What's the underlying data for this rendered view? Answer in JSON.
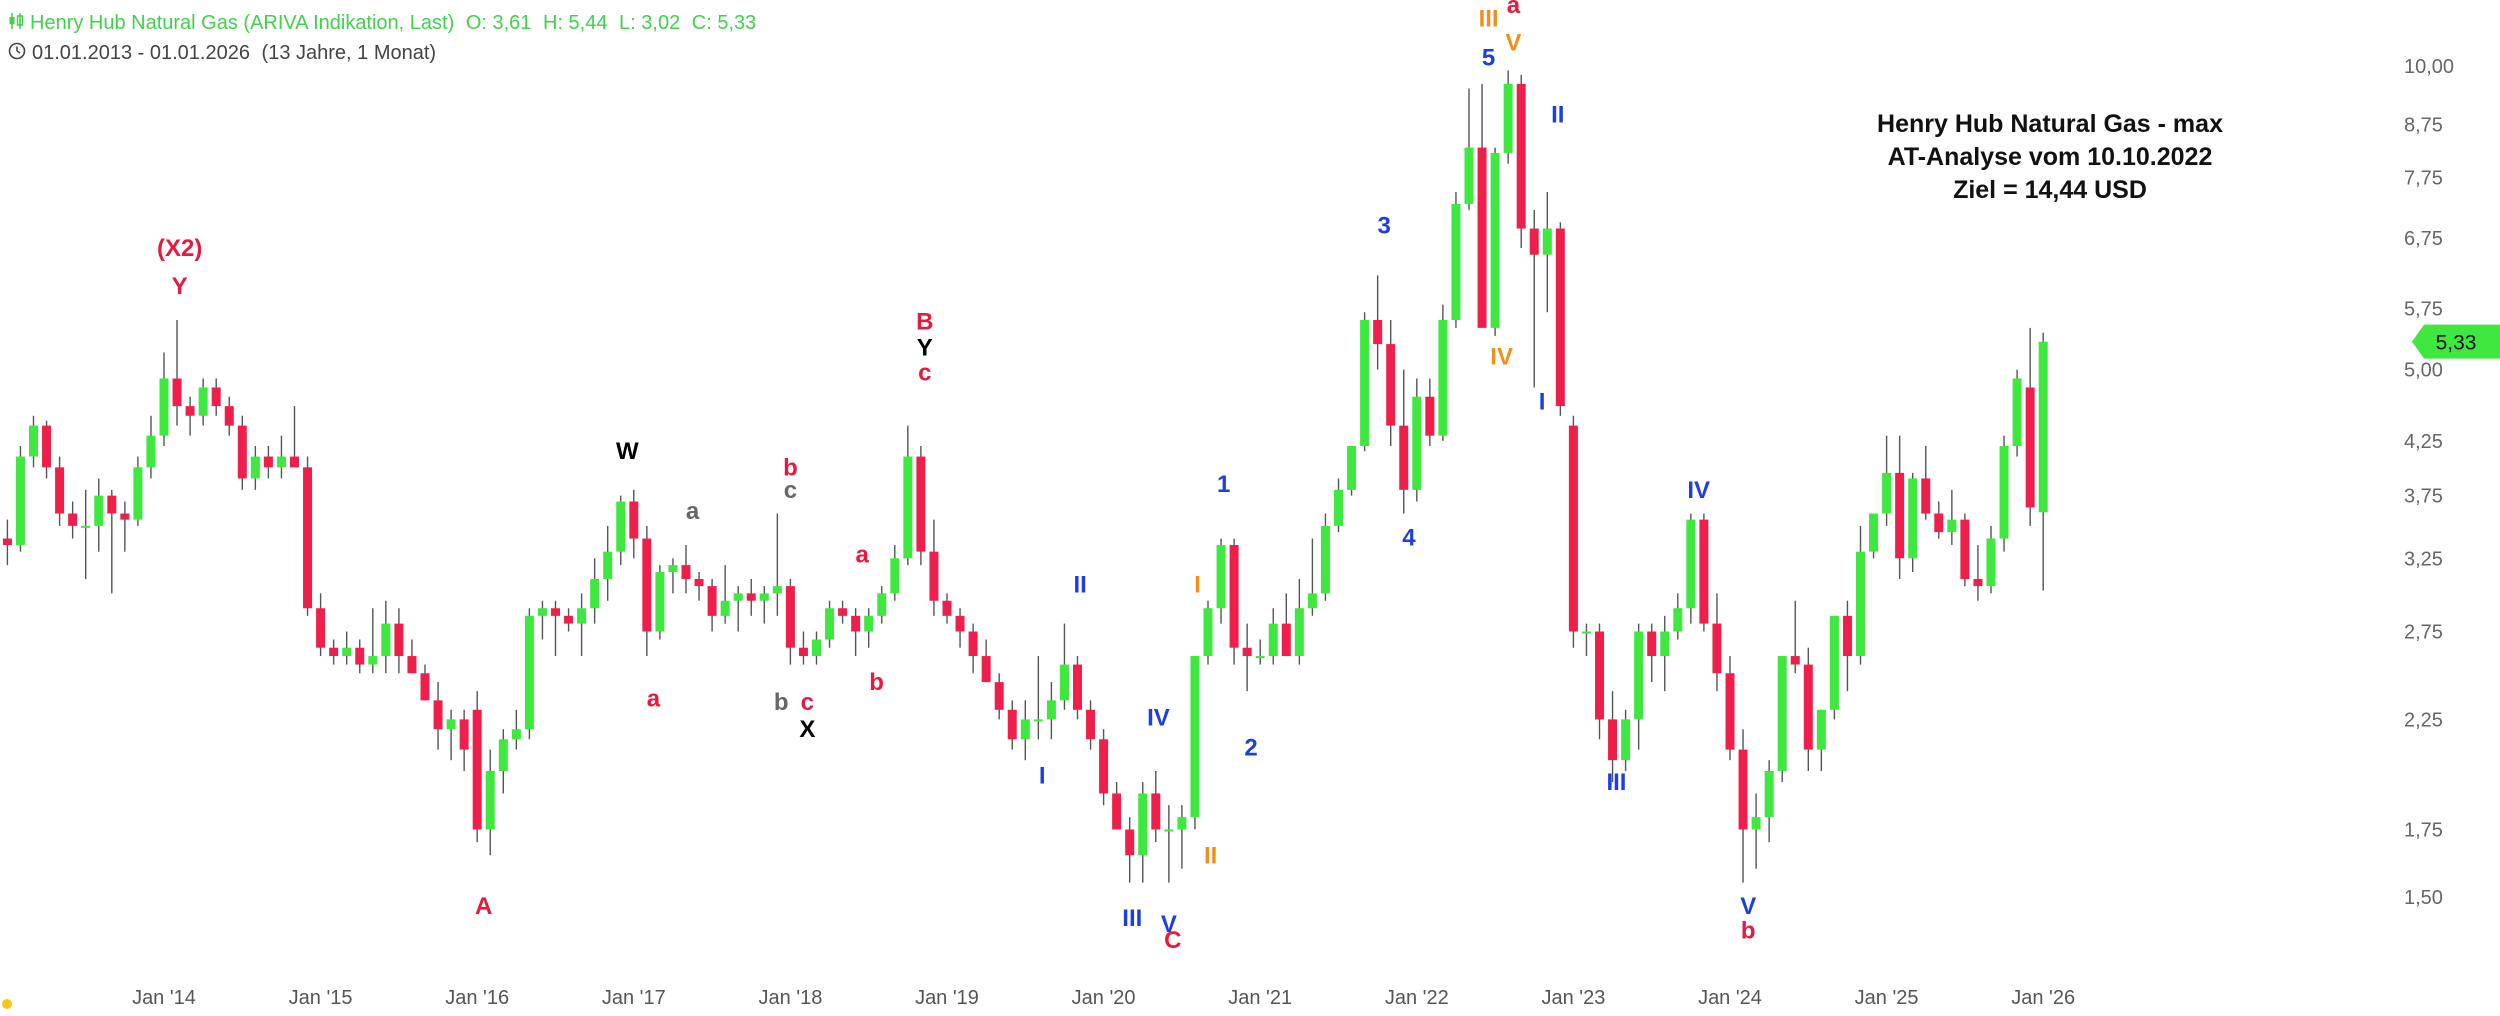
{
  "header": {
    "instrument": "Henry Hub Natural Gas (ARIVA Indikation, Last)",
    "open": "O: 3,61",
    "high": "H: 5,44",
    "low": "L: 3,02",
    "close": "C: 5,33",
    "range": "01.01.2013 - 01.01.2026",
    "duration": "(13 Jahre, 1 Monat)"
  },
  "annotation": {
    "line1": "Henry Hub Natural Gas - max",
    "line2": "AT-Analyse vom 10.10.2022",
    "line3": "Ziel = 14,44 USD"
  },
  "colors": {
    "up": "#3ee83f",
    "down": "#ee1f4a",
    "wick": "#555555",
    "header": "#3fd24a",
    "red": "#e8193c",
    "blue": "#1d3ee0",
    "orange": "#f0901c",
    "gray": "#666666",
    "black": "#000000"
  },
  "chart_data": {
    "type": "candlestick",
    "scale": "log",
    "ylim": [
      1.38,
      11.2
    ],
    "y_ticks": [
      "1,50",
      "1,75",
      "2,25",
      "2,75",
      "3,25",
      "3,75",
      "4,25",
      "5,00",
      "5,75",
      "6,75",
      "7,75",
      "8,75",
      "10,00"
    ],
    "y_tick_values": [
      1.5,
      1.75,
      2.25,
      2.75,
      3.25,
      3.75,
      4.25,
      5.0,
      5.75,
      6.75,
      7.75,
      8.75,
      10.0
    ],
    "x_ticks": [
      "Jan '14",
      "Jan '15",
      "Jan '16",
      "Jan '17",
      "Jan '18",
      "Jan '19",
      "Jan '20",
      "Jan '21",
      "Jan '22",
      "Jan '23",
      "Jan '24",
      "Jan '25",
      "Jan '26"
    ],
    "x_tick_months": [
      12,
      24,
      36,
      48,
      60,
      72,
      84,
      96,
      108,
      120,
      132,
      144,
      156
    ],
    "last_price": "5,33",
    "last_value": 5.33,
    "bars": [
      [
        0,
        3.4,
        3.55,
        3.2,
        3.35
      ],
      [
        1,
        3.35,
        4.2,
        3.3,
        4.1
      ],
      [
        2,
        4.1,
        4.5,
        4.0,
        4.4
      ],
      [
        3,
        4.4,
        4.45,
        3.9,
        4.0
      ],
      [
        4,
        4.0,
        4.1,
        3.5,
        3.6
      ],
      [
        5,
        3.6,
        3.7,
        3.4,
        3.5
      ],
      [
        6,
        3.5,
        3.8,
        3.1,
        3.5
      ],
      [
        7,
        3.5,
        3.9,
        3.3,
        3.75
      ],
      [
        8,
        3.75,
        3.8,
        3.0,
        3.6
      ],
      [
        9,
        3.6,
        3.7,
        3.3,
        3.55
      ],
      [
        10,
        3.55,
        4.1,
        3.5,
        4.0
      ],
      [
        11,
        4.0,
        4.5,
        3.9,
        4.3
      ],
      [
        12,
        4.3,
        5.2,
        4.2,
        4.9
      ],
      [
        13,
        4.9,
        5.6,
        4.4,
        4.6
      ],
      [
        14,
        4.6,
        4.7,
        4.3,
        4.5
      ],
      [
        15,
        4.5,
        4.9,
        4.4,
        4.8
      ],
      [
        16,
        4.8,
        4.9,
        4.5,
        4.6
      ],
      [
        17,
        4.6,
        4.7,
        4.3,
        4.4
      ],
      [
        18,
        4.4,
        4.5,
        3.8,
        3.9
      ],
      [
        19,
        3.9,
        4.2,
        3.8,
        4.1
      ],
      [
        20,
        4.1,
        4.2,
        3.9,
        4.0
      ],
      [
        21,
        4.0,
        4.3,
        3.9,
        4.1
      ],
      [
        22,
        4.1,
        4.6,
        4.0,
        4.0
      ],
      [
        23,
        4.0,
        4.1,
        2.85,
        2.9
      ],
      [
        24,
        2.9,
        3.0,
        2.6,
        2.65
      ],
      [
        25,
        2.65,
        2.7,
        2.55,
        2.6
      ],
      [
        26,
        2.6,
        2.75,
        2.55,
        2.65
      ],
      [
        27,
        2.65,
        2.7,
        2.5,
        2.55
      ],
      [
        28,
        2.55,
        2.9,
        2.5,
        2.6
      ],
      [
        29,
        2.6,
        2.95,
        2.5,
        2.8
      ],
      [
        30,
        2.8,
        2.9,
        2.5,
        2.6
      ],
      [
        31,
        2.6,
        2.7,
        2.5,
        2.5
      ],
      [
        32,
        2.5,
        2.55,
        2.35,
        2.35
      ],
      [
        33,
        2.35,
        2.45,
        2.1,
        2.2
      ],
      [
        34,
        2.2,
        2.3,
        2.05,
        2.25
      ],
      [
        35,
        2.25,
        2.3,
        2.0,
        2.1
      ],
      [
        36,
        2.3,
        2.4,
        1.7,
        1.75
      ],
      [
        37,
        1.75,
        2.1,
        1.65,
        2.0
      ],
      [
        38,
        2.0,
        2.2,
        1.9,
        2.15
      ],
      [
        39,
        2.15,
        2.3,
        2.1,
        2.2
      ],
      [
        40,
        2.2,
        2.9,
        2.15,
        2.85
      ],
      [
        41,
        2.85,
        2.95,
        2.7,
        2.9
      ],
      [
        42,
        2.9,
        2.95,
        2.6,
        2.85
      ],
      [
        43,
        2.85,
        2.9,
        2.75,
        2.8
      ],
      [
        44,
        2.8,
        3.0,
        2.6,
        2.9
      ],
      [
        45,
        2.9,
        3.25,
        2.8,
        3.1
      ],
      [
        46,
        3.1,
        3.5,
        2.95,
        3.3
      ],
      [
        47,
        3.3,
        3.75,
        3.2,
        3.7
      ],
      [
        48,
        3.7,
        3.8,
        3.25,
        3.4
      ],
      [
        49,
        3.4,
        3.5,
        2.6,
        2.75
      ],
      [
        50,
        2.75,
        3.2,
        2.7,
        3.15
      ],
      [
        51,
        3.15,
        3.25,
        3.0,
        3.2
      ],
      [
        52,
        3.2,
        3.35,
        3.0,
        3.1
      ],
      [
        53,
        3.1,
        3.15,
        2.95,
        3.05
      ],
      [
        54,
        3.05,
        3.1,
        2.75,
        2.85
      ],
      [
        55,
        2.85,
        3.2,
        2.8,
        2.95
      ],
      [
        56,
        2.95,
        3.05,
        2.75,
        3.0
      ],
      [
        57,
        3.0,
        3.1,
        2.85,
        2.95
      ],
      [
        58,
        2.95,
        3.05,
        2.8,
        3.0
      ],
      [
        59,
        3.0,
        3.6,
        2.85,
        3.05
      ],
      [
        60,
        3.05,
        3.1,
        2.55,
        2.65
      ],
      [
        61,
        2.65,
        2.75,
        2.55,
        2.6
      ],
      [
        62,
        2.6,
        2.75,
        2.55,
        2.7
      ],
      [
        63,
        2.7,
        2.95,
        2.65,
        2.9
      ],
      [
        64,
        2.9,
        2.95,
        2.8,
        2.85
      ],
      [
        65,
        2.85,
        2.9,
        2.6,
        2.75
      ],
      [
        66,
        2.75,
        2.9,
        2.65,
        2.85
      ],
      [
        67,
        2.85,
        3.05,
        2.8,
        3.0
      ],
      [
        68,
        3.0,
        3.35,
        2.95,
        3.25
      ],
      [
        69,
        3.25,
        4.4,
        3.2,
        4.1
      ],
      [
        70,
        4.1,
        4.2,
        3.2,
        3.3
      ],
      [
        71,
        3.3,
        3.55,
        2.85,
        2.95
      ],
      [
        72,
        2.95,
        3.0,
        2.8,
        2.85
      ],
      [
        73,
        2.85,
        2.9,
        2.65,
        2.75
      ],
      [
        74,
        2.75,
        2.8,
        2.5,
        2.6
      ],
      [
        75,
        2.6,
        2.7,
        2.45,
        2.45
      ],
      [
        76,
        2.45,
        2.5,
        2.25,
        2.3
      ],
      [
        77,
        2.3,
        2.35,
        2.1,
        2.15
      ],
      [
        78,
        2.15,
        2.35,
        2.05,
        2.25
      ],
      [
        79,
        2.25,
        2.6,
        2.15,
        2.25
      ],
      [
        80,
        2.25,
        2.45,
        2.15,
        2.35
      ],
      [
        81,
        2.35,
        2.8,
        2.3,
        2.55
      ],
      [
        82,
        2.55,
        2.6,
        2.25,
        2.3
      ],
      [
        83,
        2.3,
        2.35,
        2.1,
        2.15
      ],
      [
        84,
        2.15,
        2.2,
        1.85,
        1.9
      ],
      [
        85,
        1.9,
        1.95,
        1.75,
        1.75
      ],
      [
        86,
        1.75,
        1.8,
        1.55,
        1.65
      ],
      [
        87,
        1.65,
        1.95,
        1.55,
        1.9
      ],
      [
        88,
        1.9,
        2.0,
        1.7,
        1.75
      ],
      [
        89,
        1.75,
        1.85,
        1.55,
        1.75
      ],
      [
        90,
        1.75,
        1.85,
        1.6,
        1.8
      ],
      [
        91,
        1.8,
        2.6,
        1.75,
        2.6
      ],
      [
        92,
        2.6,
        2.95,
        2.55,
        2.9
      ],
      [
        93,
        2.9,
        3.4,
        2.8,
        3.35
      ],
      [
        94,
        3.35,
        3.4,
        2.55,
        2.65
      ],
      [
        95,
        2.65,
        2.8,
        2.4,
        2.6
      ],
      [
        96,
        2.6,
        2.7,
        2.55,
        2.6
      ],
      [
        97,
        2.6,
        2.9,
        2.55,
        2.8
      ],
      [
        98,
        2.8,
        3.0,
        2.6,
        2.6
      ],
      [
        99,
        2.6,
        3.1,
        2.55,
        2.9
      ],
      [
        100,
        2.9,
        3.4,
        2.85,
        3.0
      ],
      [
        101,
        3.0,
        3.6,
        2.95,
        3.5
      ],
      [
        102,
        3.5,
        3.9,
        3.45,
        3.8
      ],
      [
        103,
        3.8,
        4.2,
        3.75,
        4.2
      ],
      [
        104,
        4.2,
        5.7,
        4.15,
        5.6
      ],
      [
        105,
        5.6,
        6.2,
        5.0,
        5.3
      ],
      [
        106,
        5.3,
        5.6,
        4.2,
        4.4
      ],
      [
        107,
        4.4,
        5.0,
        3.6,
        3.8
      ],
      [
        108,
        3.8,
        4.9,
        3.7,
        4.7
      ],
      [
        109,
        4.7,
        4.9,
        4.2,
        4.3
      ],
      [
        110,
        4.3,
        5.8,
        4.25,
        5.6
      ],
      [
        111,
        5.6,
        7.5,
        5.5,
        7.3
      ],
      [
        112,
        7.3,
        9.5,
        7.2,
        8.3
      ],
      [
        113,
        8.3,
        9.6,
        5.6,
        5.5
      ],
      [
        114,
        5.5,
        8.3,
        5.4,
        8.2
      ],
      [
        115,
        8.2,
        9.9,
        8.0,
        9.6
      ],
      [
        116,
        9.6,
        9.8,
        6.6,
        6.9
      ],
      [
        117,
        6.9,
        7.2,
        4.8,
        6.5
      ],
      [
        118,
        6.5,
        7.5,
        5.7,
        6.9
      ],
      [
        119,
        6.9,
        7.0,
        4.5,
        4.6
      ],
      [
        120,
        4.4,
        4.5,
        2.65,
        2.75
      ],
      [
        121,
        2.75,
        2.8,
        2.6,
        2.75
      ],
      [
        122,
        2.75,
        2.8,
        2.15,
        2.25
      ],
      [
        123,
        2.25,
        2.4,
        1.95,
        2.05
      ],
      [
        124,
        2.05,
        2.3,
        2.0,
        2.25
      ],
      [
        125,
        2.25,
        2.8,
        2.1,
        2.75
      ],
      [
        126,
        2.75,
        2.8,
        2.45,
        2.6
      ],
      [
        127,
        2.6,
        2.85,
        2.4,
        2.75
      ],
      [
        128,
        2.75,
        3.0,
        2.7,
        2.9
      ],
      [
        129,
        2.9,
        3.6,
        2.8,
        3.55
      ],
      [
        130,
        3.55,
        3.6,
        2.75,
        2.8
      ],
      [
        131,
        2.8,
        3.0,
        2.4,
        2.5
      ],
      [
        132,
        2.5,
        2.6,
        2.05,
        2.1
      ],
      [
        133,
        2.1,
        2.2,
        1.55,
        1.75
      ],
      [
        134,
        1.75,
        1.9,
        1.6,
        1.8
      ],
      [
        135,
        1.8,
        2.05,
        1.7,
        2.0
      ],
      [
        136,
        2.0,
        2.6,
        1.95,
        2.6
      ],
      [
        137,
        2.6,
        2.95,
        2.5,
        2.55
      ],
      [
        138,
        2.55,
        2.65,
        2.0,
        2.1
      ],
      [
        139,
        2.1,
        2.3,
        2.0,
        2.3
      ],
      [
        140,
        2.3,
        2.8,
        2.25,
        2.85
      ],
      [
        141,
        2.85,
        2.95,
        2.4,
        2.6
      ],
      [
        142,
        2.6,
        3.5,
        2.55,
        3.3
      ],
      [
        143,
        3.3,
        3.6,
        3.25,
        3.6
      ],
      [
        144,
        3.6,
        4.3,
        3.5,
        3.95
      ],
      [
        145,
        3.95,
        4.3,
        3.1,
        3.25
      ],
      [
        146,
        3.25,
        3.95,
        3.15,
        3.9
      ],
      [
        147,
        3.9,
        4.2,
        3.55,
        3.6
      ],
      [
        148,
        3.6,
        3.7,
        3.4,
        3.45
      ],
      [
        149,
        3.45,
        3.8,
        3.35,
        3.55
      ],
      [
        150,
        3.55,
        3.6,
        3.05,
        3.1
      ],
      [
        151,
        3.1,
        3.35,
        2.95,
        3.05
      ],
      [
        152,
        3.05,
        3.5,
        3.0,
        3.4
      ],
      [
        153,
        3.4,
        4.3,
        3.3,
        4.2
      ],
      [
        154,
        4.2,
        5.0,
        4.1,
        4.9
      ],
      [
        155,
        4.8,
        5.5,
        3.5,
        3.65
      ],
      [
        156,
        3.61,
        5.44,
        3.02,
        5.33
      ]
    ],
    "labels": [
      {
        "text": "(X2)",
        "m": 13.2,
        "v": 6.6,
        "color": "red"
      },
      {
        "text": "Y",
        "m": 13.2,
        "v": 6.05,
        "color": "red"
      },
      {
        "text": "A",
        "m": 36.5,
        "v": 1.47,
        "color": "red"
      },
      {
        "text": "W",
        "m": 47.5,
        "v": 4.15,
        "color": "black"
      },
      {
        "text": "a",
        "m": 52.5,
        "v": 3.62,
        "color": "gray"
      },
      {
        "text": "a",
        "m": 49.5,
        "v": 2.36,
        "color": "red"
      },
      {
        "text": "b",
        "m": 60.0,
        "v": 4.0,
        "color": "red"
      },
      {
        "text": "c",
        "m": 60.0,
        "v": 3.8,
        "color": "gray"
      },
      {
        "text": "b",
        "m": 59.3,
        "v": 2.34,
        "color": "gray"
      },
      {
        "text": "c",
        "m": 61.3,
        "v": 2.34,
        "color": "red"
      },
      {
        "text": "X",
        "m": 61.3,
        "v": 2.2,
        "color": "black"
      },
      {
        "text": "a",
        "m": 65.5,
        "v": 3.28,
        "color": "red"
      },
      {
        "text": "b",
        "m": 66.6,
        "v": 2.45,
        "color": "red"
      },
      {
        "text": "B",
        "m": 70.3,
        "v": 5.58,
        "color": "red"
      },
      {
        "text": "Y",
        "m": 70.3,
        "v": 5.26,
        "color": "black"
      },
      {
        "text": "c",
        "m": 70.3,
        "v": 4.97,
        "color": "red"
      },
      {
        "text": "II",
        "m": 82.2,
        "v": 3.06,
        "color": "blue"
      },
      {
        "text": "I",
        "m": 79.3,
        "v": 1.98,
        "color": "blue"
      },
      {
        "text": "IV",
        "m": 88.2,
        "v": 2.26,
        "color": "blue"
      },
      {
        "text": "III",
        "m": 86.2,
        "v": 1.43,
        "color": "blue"
      },
      {
        "text": "V",
        "m": 89.0,
        "v": 1.41,
        "color": "blue"
      },
      {
        "text": "C",
        "m": 89.3,
        "v": 1.36,
        "color": "red"
      },
      {
        "text": "I",
        "m": 91.2,
        "v": 3.06,
        "color": "orange"
      },
      {
        "text": "II",
        "m": 92.2,
        "v": 1.65,
        "color": "orange"
      },
      {
        "text": "1",
        "m": 93.2,
        "v": 3.85,
        "color": "blue"
      },
      {
        "text": "2",
        "m": 95.3,
        "v": 2.11,
        "color": "blue"
      },
      {
        "text": "3",
        "m": 105.5,
        "v": 6.95,
        "color": "blue"
      },
      {
        "text": "4",
        "m": 107.4,
        "v": 3.41,
        "color": "blue"
      },
      {
        "text": "5",
        "m": 113.5,
        "v": 10.2,
        "color": "blue"
      },
      {
        "text": "III",
        "m": 113.5,
        "v": 11.15,
        "color": "orange"
      },
      {
        "text": "a",
        "m": 115.4,
        "v": 11.5,
        "color": "red"
      },
      {
        "text": "V",
        "m": 115.4,
        "v": 10.55,
        "color": "orange"
      },
      {
        "text": "IV",
        "m": 114.5,
        "v": 5.15,
        "color": "orange"
      },
      {
        "text": "II",
        "m": 118.8,
        "v": 8.95,
        "color": "blue"
      },
      {
        "text": "I",
        "m": 117.6,
        "v": 4.65,
        "color": "blue"
      },
      {
        "text": "III",
        "m": 123.3,
        "v": 1.95,
        "color": "blue"
      },
      {
        "text": "IV",
        "m": 129.6,
        "v": 3.8,
        "color": "blue"
      },
      {
        "text": "V",
        "m": 133.4,
        "v": 1.47,
        "color": "blue"
      },
      {
        "text": "b",
        "m": 133.4,
        "v": 1.39,
        "color": "red"
      }
    ]
  }
}
